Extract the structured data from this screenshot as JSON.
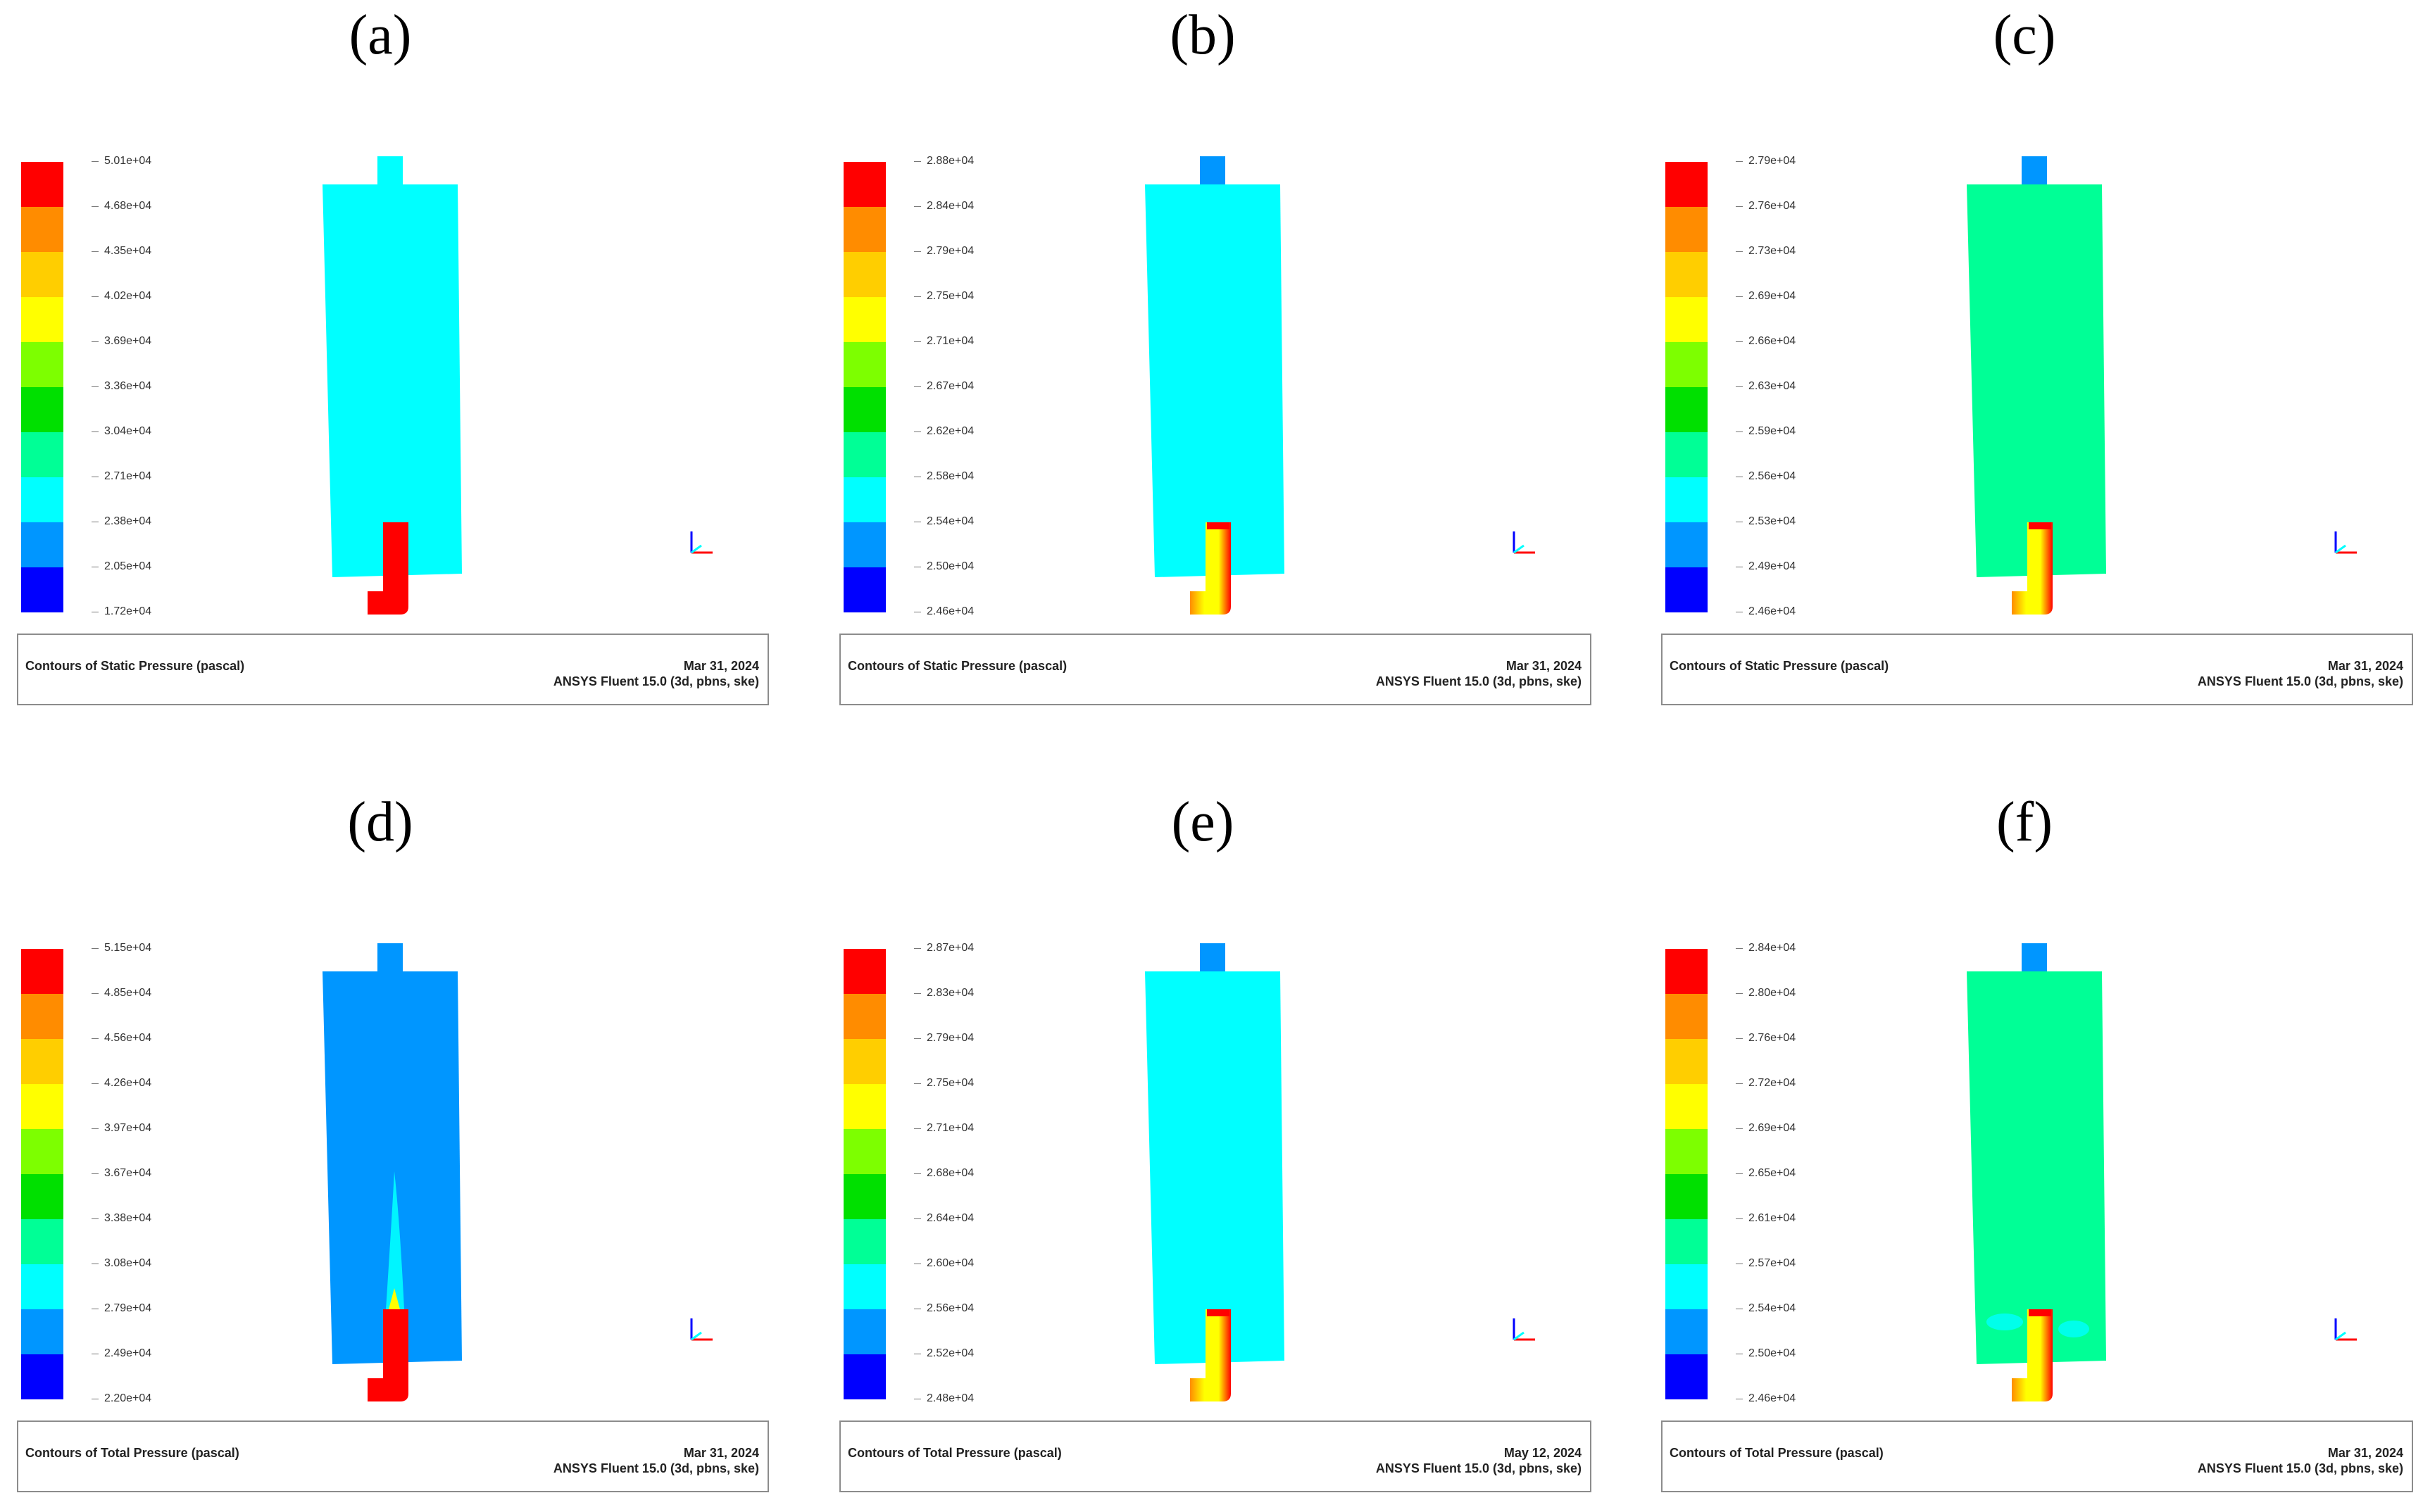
{
  "colors": {
    "colorbar": [
      "#0000ff",
      "#0096ff",
      "#00ffff",
      "#00ff96",
      "#00e000",
      "#7dff00",
      "#ffff00",
      "#ffce00",
      "#ff8c00",
      "#ff0000"
    ],
    "cyan": "#00ffff",
    "blue": "#0096ff",
    "green": "#00ff96",
    "red": "#ff0000",
    "orange": "#ff8c00",
    "yellow": "#ffff00"
  },
  "panels": [
    {
      "label": "(a)",
      "ticks": [
        "5.01e+04",
        "4.68e+04",
        "4.35e+04",
        "4.02e+04",
        "3.69e+04",
        "3.36e+04",
        "3.04e+04",
        "2.71e+04",
        "2.38e+04",
        "2.05e+04",
        "1.72e+04"
      ],
      "title": "Contours of Static Pressure  (pascal)",
      "date": "Mar 31, 2024",
      "software": "ANSYS Fluent 15.0 (3d, pbns, ske)",
      "body_color_key": "cyan",
      "jet_style": "solid-red"
    },
    {
      "label": "(b)",
      "ticks": [
        "2.88e+04",
        "2.84e+04",
        "2.79e+04",
        "2.75e+04",
        "2.71e+04",
        "2.67e+04",
        "2.62e+04",
        "2.58e+04",
        "2.54e+04",
        "2.50e+04",
        "2.46e+04"
      ],
      "title": "Contours of Static Pressure  (pascal)",
      "date": "Mar 31, 2024",
      "software": "ANSYS Fluent 15.0 (3d, pbns, ske)",
      "body_color_key": "cyan",
      "jet_style": "gradient"
    },
    {
      "label": "(c)",
      "ticks": [
        "2.79e+04",
        "2.76e+04",
        "2.73e+04",
        "2.69e+04",
        "2.66e+04",
        "2.63e+04",
        "2.59e+04",
        "2.56e+04",
        "2.53e+04",
        "2.49e+04",
        "2.46e+04"
      ],
      "title": "Contours of Static Pressure  (pascal)",
      "date": "Mar 31, 2024",
      "software": "ANSYS Fluent 15.0 (3d, pbns, ske)",
      "body_color_key": "green",
      "jet_style": "gradient"
    },
    {
      "label": "(d)",
      "ticks": [
        "5.15e+04",
        "4.85e+04",
        "4.56e+04",
        "4.26e+04",
        "3.97e+04",
        "3.67e+04",
        "3.38e+04",
        "3.08e+04",
        "2.79e+04",
        "2.49e+04",
        "2.20e+04"
      ],
      "title": "Contours of Total Pressure  (pascal)",
      "date": "Mar 31, 2024",
      "software": "ANSYS Fluent 15.0 (3d, pbns, ske)",
      "body_color_key": "blue",
      "jet_style": "solid-red-plume"
    },
    {
      "label": "(e)",
      "ticks": [
        "2.87e+04",
        "2.83e+04",
        "2.79e+04",
        "2.75e+04",
        "2.71e+04",
        "2.68e+04",
        "2.64e+04",
        "2.60e+04",
        "2.56e+04",
        "2.52e+04",
        "2.48e+04"
      ],
      "title": "Contours of Total Pressure  (pascal)",
      "date": "May 12, 2024",
      "software": "ANSYS Fluent 15.0 (3d, pbns, ske)",
      "body_color_key": "cyan",
      "jet_style": "gradient"
    },
    {
      "label": "(f)",
      "ticks": [
        "2.84e+04",
        "2.80e+04",
        "2.76e+04",
        "2.72e+04",
        "2.69e+04",
        "2.65e+04",
        "2.61e+04",
        "2.57e+04",
        "2.54e+04",
        "2.50e+04",
        "2.46e+04"
      ],
      "title": "Contours of Total Pressure  (pascal)",
      "date": "Mar 31, 2024",
      "software": "ANSYS Fluent 15.0 (3d, pbns, ske)",
      "body_color_key": "green",
      "jet_style": "gradient-swirl"
    }
  ]
}
